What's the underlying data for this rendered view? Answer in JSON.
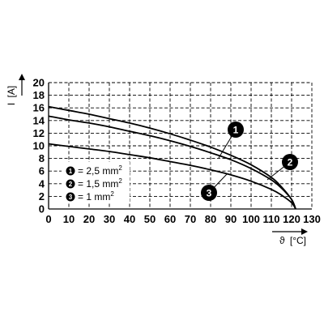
{
  "chart_data": {
    "type": "line",
    "xlabel_symbol": "ϑ",
    "xlabel_unit": "[°C]",
    "ylabel_symbol": "I",
    "ylabel_unit": "[A]",
    "xlim": [
      0,
      130
    ],
    "ylim": [
      0,
      20
    ],
    "x_ticks": [
      0,
      10,
      20,
      30,
      40,
      50,
      60,
      70,
      80,
      90,
      100,
      110,
      120,
      130
    ],
    "y_ticks": [
      0,
      2,
      4,
      6,
      8,
      10,
      12,
      14,
      16,
      18,
      20
    ],
    "grid": true,
    "series": [
      {
        "id": "1",
        "name": "2,5 mm",
        "superscript": "2",
        "points": [
          [
            0,
            16.2
          ],
          [
            10,
            15.6
          ],
          [
            20,
            15.0
          ],
          [
            30,
            14.3
          ],
          [
            40,
            13.6
          ],
          [
            50,
            12.8
          ],
          [
            60,
            11.9
          ],
          [
            70,
            10.9
          ],
          [
            80,
            9.8
          ],
          [
            90,
            8.5
          ],
          [
            100,
            7.0
          ],
          [
            110,
            5.0
          ],
          [
            115,
            3.5
          ],
          [
            120,
            1.5
          ],
          [
            122,
            0.0
          ]
        ]
      },
      {
        "id": "2",
        "name": "1,5 mm",
        "superscript": "2",
        "points": [
          [
            0,
            14.7
          ],
          [
            10,
            14.1
          ],
          [
            20,
            13.6
          ],
          [
            30,
            13.0
          ],
          [
            40,
            12.3
          ],
          [
            50,
            11.6
          ],
          [
            60,
            10.8
          ],
          [
            70,
            9.9
          ],
          [
            80,
            8.9
          ],
          [
            90,
            7.8
          ],
          [
            100,
            6.4
          ],
          [
            110,
            4.6
          ],
          [
            115,
            3.3
          ],
          [
            120,
            1.5
          ],
          [
            122,
            0.0
          ]
        ]
      },
      {
        "id": "3",
        "name": "1 mm",
        "superscript": "2",
        "points": [
          [
            0,
            10.3
          ],
          [
            10,
            9.9
          ],
          [
            20,
            9.5
          ],
          [
            30,
            9.1
          ],
          [
            40,
            8.6
          ],
          [
            50,
            8.1
          ],
          [
            60,
            7.5
          ],
          [
            70,
            6.9
          ],
          [
            80,
            6.2
          ],
          [
            90,
            5.4
          ],
          [
            100,
            4.4
          ],
          [
            110,
            3.1
          ],
          [
            115,
            2.2
          ],
          [
            120,
            1.0
          ],
          [
            122,
            0.0
          ]
        ]
      }
    ],
    "legend": {
      "placement": "left-lower-inside",
      "entries": [
        {
          "id": "1",
          "prefix": "= ",
          "text": "2,5 mm",
          "superscript": "2"
        },
        {
          "id": "2",
          "prefix": "= ",
          "text": "1,5 mm",
          "superscript": "2"
        },
        {
          "id": "3",
          "prefix": "= ",
          "text": "1 mm",
          "superscript": "2"
        }
      ]
    },
    "callouts": [
      {
        "id": "1",
        "target_series": "1"
      },
      {
        "id": "2",
        "target_series": "2"
      },
      {
        "id": "3",
        "target_series": "3"
      }
    ],
    "colors": {
      "lines": "#000000",
      "grid": "#000000",
      "badge_fill": "#000000",
      "badge_text": "#ffffff"
    }
  }
}
